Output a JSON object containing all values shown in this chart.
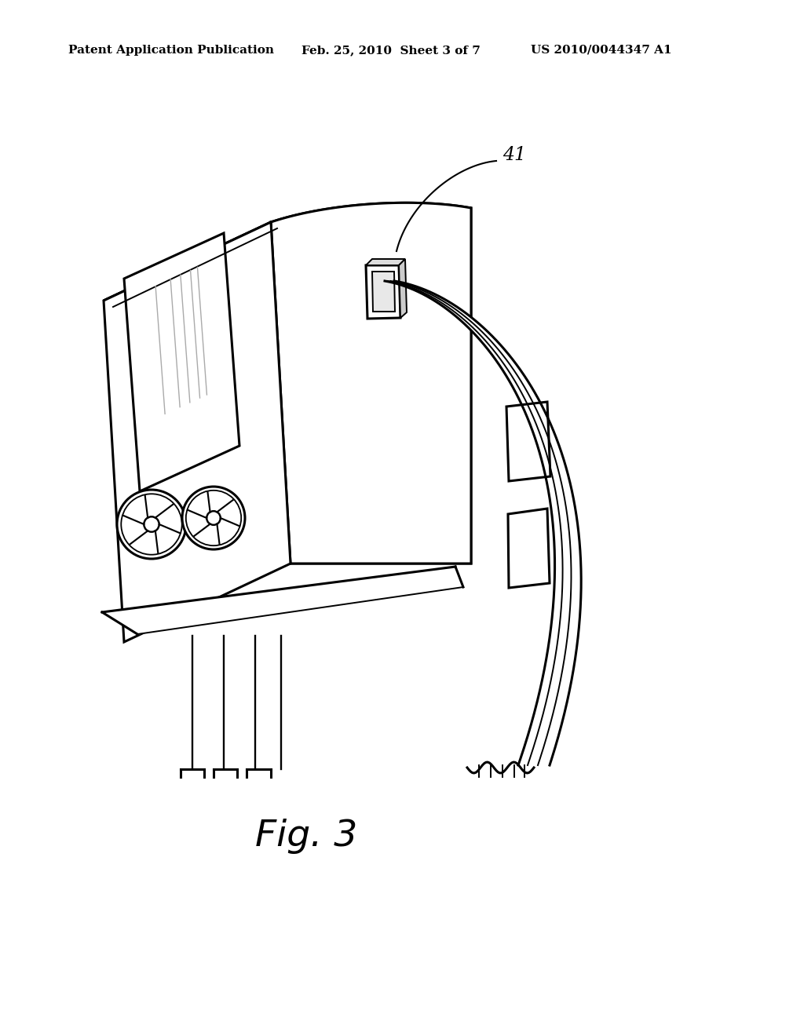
{
  "bg_color": "#ffffff",
  "line_color": "#000000",
  "header_left": "Patent Application Publication",
  "header_center": "Feb. 25, 2010  Sheet 3 of 7",
  "header_right": "US 2010/0044347 A1",
  "figure_label": "Fig. 3",
  "part_label": "41",
  "header_fontsize": 11,
  "figure_label_fontsize": 34,
  "part_label_fontsize": 17
}
